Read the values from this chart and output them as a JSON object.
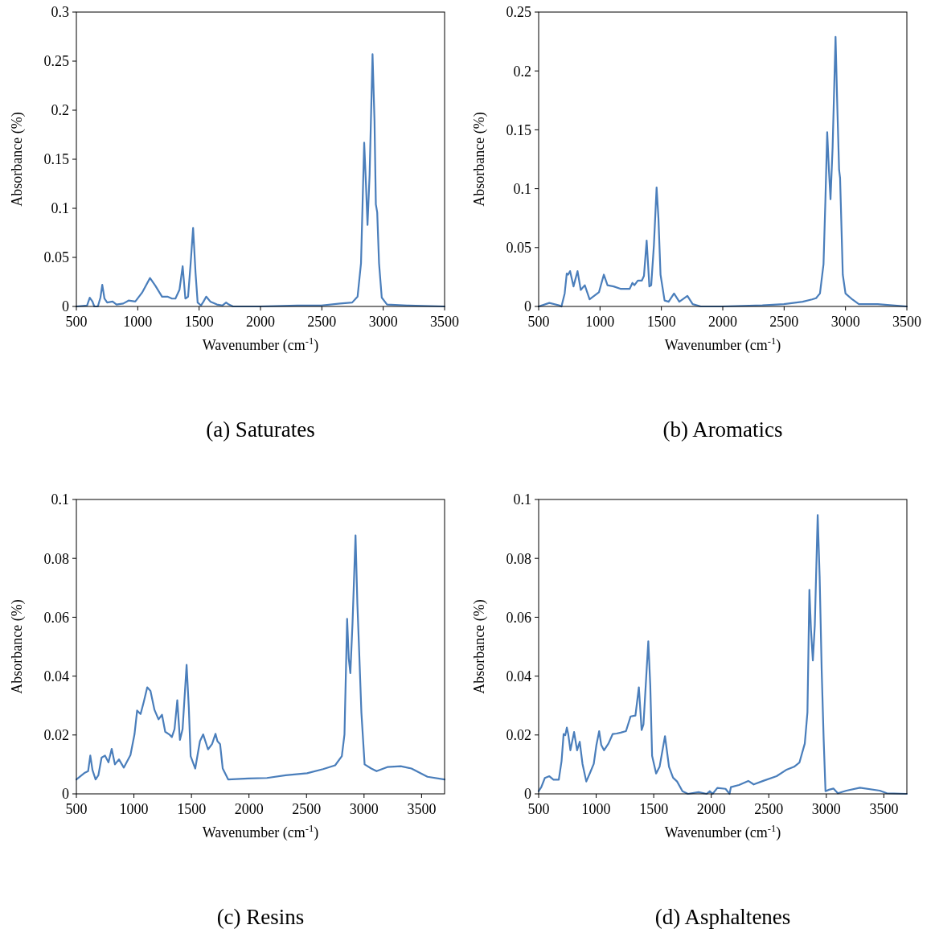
{
  "chart_data": [
    {
      "type": "line",
      "title": "(a) Saturates",
      "xlabel": "Wavenumber  (cm$^{-1}$)",
      "ylabel": "Absorbance (%)",
      "xlim": [
        500,
        3500
      ],
      "ylim": [
        0,
        0.3
      ],
      "xticks": [
        500,
        1000,
        1500,
        2000,
        2500,
        3000,
        3500
      ],
      "yticks": [
        0,
        0.05,
        0.1,
        0.15,
        0.2,
        0.25,
        0.3
      ],
      "x": [
        500,
        587,
        609,
        631,
        646,
        675,
        696,
        711,
        729,
        751,
        795,
        827,
        882,
        925,
        980,
        1035,
        1100,
        1144,
        1198,
        1242,
        1279,
        1307,
        1340,
        1366,
        1388,
        1410,
        1431,
        1451,
        1471,
        1488,
        1515,
        1536,
        1558,
        1591,
        1645,
        1689,
        1720,
        1742,
        1776,
        1995,
        2300,
        2496,
        2649,
        2747,
        2791,
        2819,
        2845,
        2859,
        2872,
        2889,
        2913,
        2929,
        2940,
        2951,
        2966,
        2988,
        3031,
        3195,
        3500
      ],
      "series": [
        {
          "color": "#4a7ebb",
          "values": [
            0,
            0.001,
            0.009,
            0.005,
            0,
            0,
            0.009,
            0.022,
            0.008,
            0.004,
            0.005,
            0.002,
            0.003,
            0.006,
            0.005,
            0.014,
            0.029,
            0.021,
            0.01,
            0.01,
            0.008,
            0.008,
            0.017,
            0.041,
            0.008,
            0.01,
            0.044,
            0.08,
            0.034,
            0.004,
            0.001,
            0.005,
            0.01,
            0.005,
            0.002,
            0.001,
            0.004,
            0.002,
            0,
            0,
            0.001,
            0.001,
            0.003,
            0.004,
            0.01,
            0.044,
            0.167,
            0.126,
            0.083,
            0.134,
            0.257,
            0.189,
            0.104,
            0.096,
            0.044,
            0.009,
            0.002,
            0.001,
            0
          ]
        }
      ]
    },
    {
      "type": "line",
      "title": "(b) Aromatics",
      "xlabel": "Wavenumber  (cm$^{-1}$)",
      "ylabel": "Absorbance (%)",
      "xlim": [
        500,
        3500
      ],
      "ylim": [
        0,
        0.25
      ],
      "xticks": [
        500,
        1000,
        1500,
        2000,
        2500,
        3000,
        3500
      ],
      "yticks": [
        0,
        0.05,
        0.1,
        0.15,
        0.2,
        0.25
      ],
      "x": [
        500,
        587,
        664,
        686,
        712,
        729,
        740,
        756,
        784,
        817,
        843,
        876,
        915,
        991,
        1031,
        1061,
        1111,
        1166,
        1242,
        1264,
        1280,
        1308,
        1341,
        1358,
        1380,
        1402,
        1417,
        1439,
        1461,
        1476,
        1493,
        1526,
        1559,
        1603,
        1646,
        1712,
        1755,
        1821,
        1996,
        2323,
        2498,
        2651,
        2727,
        2760,
        2792,
        2821,
        2836,
        2851,
        2865,
        2878,
        2895,
        2919,
        2934,
        2948,
        2956,
        2978,
        3000,
        3055,
        3109,
        3262,
        3500
      ],
      "series": [
        {
          "color": "#4a7ebb",
          "values": [
            0,
            0.003,
            0.001,
            0,
            0.011,
            0.028,
            0.027,
            0.03,
            0.017,
            0.03,
            0.014,
            0.018,
            0.006,
            0.012,
            0.027,
            0.018,
            0.017,
            0.015,
            0.015,
            0.02,
            0.018,
            0.022,
            0.022,
            0.026,
            0.056,
            0.017,
            0.018,
            0.052,
            0.101,
            0.075,
            0.027,
            0.005,
            0.004,
            0.011,
            0.004,
            0.009,
            0.002,
            0,
            0,
            0.001,
            0.002,
            0.004,
            0.006,
            0.007,
            0.011,
            0.036,
            0.089,
            0.148,
            0.116,
            0.091,
            0.135,
            0.229,
            0.167,
            0.116,
            0.109,
            0.027,
            0.011,
            0.006,
            0.002,
            0.002,
            0
          ]
        }
      ]
    },
    {
      "type": "line",
      "title": "(c) Resins",
      "xlabel": "Wavenumber  (cm$^{-1}$)",
      "ylabel": "Absorbance (%)",
      "xlim": [
        500,
        3700
      ],
      "ylim": [
        0,
        0.1
      ],
      "xticks": [
        500,
        1000,
        1500,
        2000,
        2500,
        3000,
        3500
      ],
      "yticks": [
        0,
        0.02,
        0.04,
        0.06,
        0.08,
        0.1
      ],
      "x": [
        500,
        574,
        602,
        621,
        640,
        667,
        691,
        719,
        749,
        779,
        807,
        835,
        870,
        912,
        970,
        1005,
        1028,
        1058,
        1086,
        1116,
        1144,
        1179,
        1214,
        1244,
        1272,
        1307,
        1330,
        1353,
        1377,
        1400,
        1423,
        1458,
        1477,
        1493,
        1533,
        1574,
        1602,
        1644,
        1679,
        1709,
        1726,
        1749,
        1772,
        1819,
        1993,
        2156,
        2319,
        2505,
        2644,
        2749,
        2807,
        2830,
        2853,
        2867,
        2881,
        2900,
        2926,
        2942,
        2958,
        2977,
        3005,
        3063,
        3109,
        3202,
        3319,
        3412,
        3551,
        3700
      ],
      "series": [
        {
          "color": "#4a7ebb",
          "values": [
            0.0049,
            0.0072,
            0.0077,
            0.013,
            0.0081,
            0.0049,
            0.0063,
            0.0123,
            0.013,
            0.0107,
            0.0153,
            0.01,
            0.0117,
            0.0089,
            0.0132,
            0.0202,
            0.0283,
            0.0271,
            0.0313,
            0.0362,
            0.035,
            0.0285,
            0.0253,
            0.0269,
            0.0211,
            0.0202,
            0.0193,
            0.022,
            0.0318,
            0.0183,
            0.022,
            0.0438,
            0.0294,
            0.0128,
            0.0086,
            0.0179,
            0.0202,
            0.0151,
            0.0169,
            0.0204,
            0.0179,
            0.0169,
            0.0086,
            0.0049,
            0.0052,
            0.0054,
            0.0063,
            0.007,
            0.0084,
            0.0097,
            0.0128,
            0.0202,
            0.0595,
            0.0461,
            0.041,
            0.0581,
            0.0878,
            0.0646,
            0.048,
            0.0276,
            0.01,
            0.0086,
            0.0077,
            0.0091,
            0.0094,
            0.0086,
            0.0058,
            0.0049
          ]
        }
      ]
    },
    {
      "type": "line",
      "title": "(d) Asphaltenes",
      "xlabel": "Wavenumber  (cm$^{-1}$)",
      "ylabel": "Absorbance (%)",
      "xlim": [
        500,
        3700
      ],
      "ylim": [
        0,
        0.1
      ],
      "xticks": [
        500,
        1000,
        1500,
        2000,
        2500,
        3000,
        3500
      ],
      "yticks": [
        0,
        0.02,
        0.04,
        0.06,
        0.08,
        0.1
      ],
      "x": [
        500,
        523,
        554,
        593,
        629,
        675,
        699,
        717,
        731,
        745,
        757,
        776,
        808,
        834,
        857,
        881,
        914,
        944,
        979,
        1002,
        1026,
        1044,
        1068,
        1107,
        1143,
        1178,
        1213,
        1259,
        1299,
        1341,
        1371,
        1395,
        1411,
        1439,
        1453,
        1470,
        1486,
        1521,
        1551,
        1598,
        1633,
        1668,
        1703,
        1750,
        1797,
        1890,
        1960,
        1988,
        2012,
        2053,
        2124,
        2159,
        2171,
        2241,
        2322,
        2369,
        2451,
        2568,
        2650,
        2720,
        2766,
        2813,
        2836,
        2853,
        2867,
        2883,
        2900,
        2925,
        2942,
        2960,
        2977,
        2993,
        3023,
        3063,
        3100,
        3175,
        3292,
        3465,
        3526,
        3700
      ],
      "series": [
        {
          "color": "#4a7ebb",
          "values": [
            0.0009,
            0.0023,
            0.0054,
            0.006,
            0.0048,
            0.0048,
            0.0111,
            0.0203,
            0.0199,
            0.0225,
            0.0203,
            0.0148,
            0.021,
            0.0148,
            0.0177,
            0.0102,
            0.0042,
            0.0069,
            0.0102,
            0.0166,
            0.0213,
            0.0166,
            0.0148,
            0.0171,
            0.0203,
            0.0205,
            0.0208,
            0.0213,
            0.0263,
            0.0266,
            0.0362,
            0.0217,
            0.0236,
            0.0425,
            0.0518,
            0.037,
            0.0129,
            0.0069,
            0.0092,
            0.0196,
            0.0092,
            0.0055,
            0.0042,
            0.0009,
            0,
            0.0006,
            0,
            0.0009,
            0,
            0.002,
            0.0017,
            0,
            0.0023,
            0.003,
            0.0044,
            0.0032,
            0.0044,
            0.006,
            0.0081,
            0.0092,
            0.0106,
            0.0171,
            0.0277,
            0.0693,
            0.0555,
            0.0453,
            0.0573,
            0.0947,
            0.0739,
            0.0416,
            0.0185,
            0.0009,
            0.0014,
            0.0018,
            0.0002,
            0.0011,
            0.0021,
            0.0011,
            0.0002,
            0
          ]
        }
      ]
    }
  ]
}
